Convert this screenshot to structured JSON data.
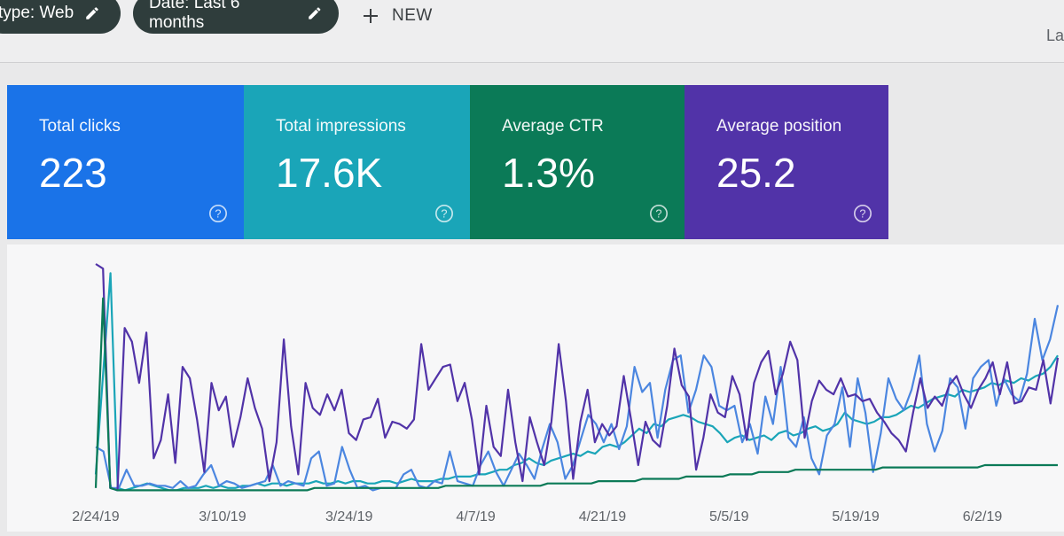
{
  "filters": {
    "type_chip": "type: Web",
    "date_chip": "Date: Last 6 months",
    "new_label": "NEW",
    "corner": "La"
  },
  "metrics": [
    {
      "label": "Total clicks",
      "value": "223",
      "color": "#1a73e8"
    },
    {
      "label": "Total impressions",
      "value": "17.6K",
      "color": "#1aa5b8"
    },
    {
      "label": "Average CTR",
      "value": "1.3%",
      "color": "#0b7a57"
    },
    {
      "label": "Average position",
      "value": "25.2",
      "color": "#5133a8"
    }
  ],
  "chart_data": {
    "type": "line",
    "x_ticks": [
      "2/24/19",
      "3/10/19",
      "3/24/19",
      "4/7/19",
      "4/21/19",
      "5/5/19",
      "5/19/19",
      "6/2/19"
    ],
    "ylim": [
      0,
      100
    ],
    "grid": false,
    "series": [
      {
        "color": "#5133a8",
        "values": [
          100,
          98,
          2,
          1,
          72,
          66,
          48,
          70,
          15,
          23,
          43,
          13,
          55,
          50,
          32,
          9,
          48,
          36,
          42,
          20,
          33,
          50,
          37,
          28,
          5,
          22,
          67,
          29,
          8,
          48,
          37,
          34,
          43,
          36,
          45,
          26,
          23,
          32,
          33,
          41,
          24,
          31,
          30,
          28,
          32,
          65,
          45,
          50,
          55,
          56,
          40,
          48,
          32,
          8,
          38,
          20,
          16,
          45,
          22,
          5,
          33,
          22,
          12,
          31,
          65,
          40,
          6,
          31,
          45,
          22,
          30,
          25,
          29,
          51,
          32,
          12,
          31,
          23,
          20,
          38,
          63,
          47,
          42,
          10,
          24,
          43,
          35,
          33,
          51,
          43,
          23,
          48,
          57,
          62,
          43,
          52,
          66,
          58,
          24,
          40,
          49,
          45,
          43,
          50,
          42,
          43,
          40,
          41,
          35,
          31,
          26,
          23,
          18,
          35,
          50,
          37,
          42,
          38,
          47,
          51,
          43,
          37,
          45,
          50,
          57,
          43,
          57,
          39,
          40,
          46,
          45,
          58,
          39,
          59
        ]
      },
      {
        "color": "#1aa5b8",
        "values": [
          8,
          52,
          96,
          2,
          1,
          2,
          3,
          4,
          3,
          2,
          1,
          1,
          2,
          2,
          2,
          3,
          2,
          3,
          2,
          2,
          3,
          3,
          4,
          3,
          4,
          4,
          3,
          4,
          4,
          4,
          5,
          4,
          4,
          5,
          4,
          5,
          5,
          4,
          4,
          5,
          5,
          4,
          5,
          6,
          5,
          5,
          5,
          6,
          6,
          7,
          7,
          7,
          8,
          8,
          9,
          10,
          10,
          12,
          13,
          15,
          13,
          12,
          14,
          15,
          16,
          17,
          16,
          18,
          17,
          20,
          21,
          20,
          22,
          25,
          28,
          26,
          30,
          29,
          32,
          33,
          34,
          33,
          31,
          30,
          29,
          26,
          22,
          24,
          25,
          23,
          24,
          25,
          23,
          26,
          27,
          25,
          26,
          28,
          29,
          27,
          28,
          30,
          35,
          32,
          31,
          30,
          31,
          33,
          33,
          34,
          36,
          38,
          37,
          39,
          41,
          42,
          43,
          42,
          45,
          44,
          45,
          46,
          48,
          47,
          49,
          48,
          50,
          49,
          51,
          52,
          55,
          60
        ]
      },
      {
        "color": "#4b86e0",
        "values": [
          20,
          18,
          2,
          2,
          10,
          3,
          3,
          4,
          3,
          3,
          2,
          5,
          2,
          3,
          8,
          12,
          3,
          5,
          4,
          2,
          3,
          4,
          5,
          12,
          3,
          5,
          4,
          3,
          15,
          18,
          3,
          4,
          20,
          10,
          2,
          3,
          1,
          2,
          2,
          2,
          8,
          10,
          3,
          2,
          5,
          4,
          18,
          5,
          4,
          3,
          12,
          18,
          9,
          3,
          10,
          17,
          12,
          6,
          19,
          30,
          22,
          6,
          12,
          23,
          34,
          30,
          22,
          30,
          19,
          29,
          55,
          44,
          48,
          24,
          45,
          58,
          60,
          35,
          45,
          60,
          55,
          38,
          36,
          38,
          22,
          30,
          17,
          42,
          30,
          55,
          24,
          20,
          33,
          15,
          8,
          25,
          30,
          46,
          20,
          50,
          35,
          9,
          26,
          50,
          41,
          36,
          45,
          60,
          30,
          18,
          27,
          50,
          46,
          28,
          50,
          55,
          58,
          38,
          50,
          43,
          40,
          52,
          76,
          58,
          67,
          82
        ]
      },
      {
        "color": "#0b7a57",
        "values": [
          2,
          85,
          2,
          1,
          1,
          1,
          1,
          1,
          1,
          1,
          1,
          1,
          1,
          1,
          1,
          1,
          1,
          1,
          1,
          1,
          1,
          1,
          1,
          1,
          1,
          1,
          1,
          1,
          1,
          1,
          2,
          2,
          2,
          2,
          2,
          2,
          2,
          2,
          2,
          2,
          2,
          2,
          2,
          2,
          2,
          2,
          2,
          2,
          3,
          3,
          3,
          3,
          3,
          3,
          3,
          3,
          3,
          3,
          3,
          3,
          3,
          3,
          4,
          4,
          4,
          4,
          4,
          4,
          4,
          5,
          5,
          5,
          5,
          5,
          5,
          6,
          6,
          6,
          6,
          6,
          6,
          7,
          7,
          7,
          7,
          7,
          7,
          8,
          8,
          8,
          8,
          9,
          9,
          9,
          9,
          9,
          10,
          10,
          10,
          10,
          10,
          10,
          10,
          10,
          10,
          10,
          10,
          10,
          11,
          11,
          11,
          11,
          11,
          11,
          11,
          11,
          11,
          11,
          11,
          11,
          11,
          11,
          12,
          12,
          12,
          12,
          12,
          12,
          12,
          12,
          12,
          12,
          12
        ]
      }
    ]
  }
}
